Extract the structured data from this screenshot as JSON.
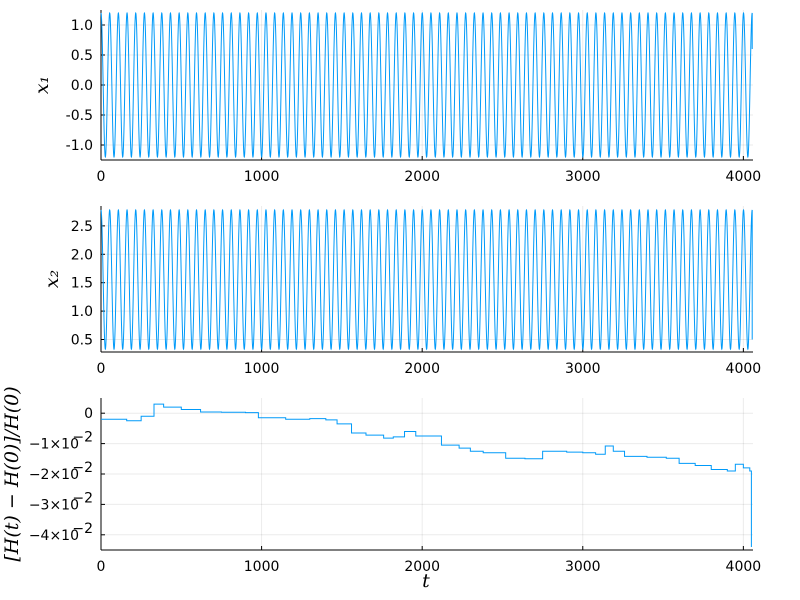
{
  "colors": {
    "series": "#009af9",
    "axis": "#000000",
    "grid": "#e6e6e6"
  },
  "chart_data": [
    {
      "type": "line",
      "ylabel": "x₁",
      "xlim": [
        0,
        4060
      ],
      "ylim": [
        -1.25,
        1.25
      ],
      "xticks": [
        0,
        1000,
        2000,
        3000,
        4000
      ],
      "xtick_labels": [
        "0",
        "1000",
        "2000",
        "3000",
        "4000"
      ],
      "yticks": [
        -1.0,
        -0.5,
        0.0,
        0.5,
        1.0
      ],
      "ytick_labels": [
        "-1.0",
        "-0.5",
        "0.0",
        "0.5",
        "1.0"
      ],
      "grid": true,
      "series": [
        {
          "kind": "oscillation",
          "t_end": 4055,
          "cycles": 75,
          "min": -1.2,
          "max": 1.2,
          "end_value": 0.6
        }
      ]
    },
    {
      "type": "line",
      "ylabel": "x₂",
      "xlim": [
        0,
        4060
      ],
      "ylim": [
        0.28,
        2.85
      ],
      "xticks": [
        0,
        1000,
        2000,
        3000,
        4000
      ],
      "xtick_labels": [
        "0",
        "1000",
        "2000",
        "3000",
        "4000"
      ],
      "yticks": [
        0.5,
        1.0,
        1.5,
        2.0,
        2.5
      ],
      "ytick_labels": [
        "0.5",
        "1.0",
        "1.5",
        "2.0",
        "2.5"
      ],
      "grid": true,
      "series": [
        {
          "kind": "oscillation",
          "t_end": 4055,
          "cycles": 75,
          "min": 0.33,
          "max": 2.78,
          "end_value": 0.5
        }
      ]
    },
    {
      "type": "line",
      "ylabel": "[H(t) − H(0)]/H(0)",
      "xlabel": "t",
      "xlim": [
        0,
        4060
      ],
      "ylim": [
        -0.045,
        0.005
      ],
      "xticks": [
        0,
        1000,
        2000,
        3000,
        4000
      ],
      "xtick_labels": [
        "0",
        "1000",
        "2000",
        "3000",
        "4000"
      ],
      "yticks": [
        0,
        -0.01,
        -0.02,
        -0.03,
        -0.04
      ],
      "ytick_labels": [
        "0",
        "−1×10",
        "−2×10",
        "−3×10",
        "−4×10"
      ],
      "ytick_exponent": "−2",
      "grid": true,
      "series": [
        {
          "kind": "step",
          "points": [
            [
              0,
              -0.002
            ],
            [
              160,
              -0.0025
            ],
            [
              250,
              -0.001
            ],
            [
              330,
              0.003
            ],
            [
              390,
              0.002
            ],
            [
              500,
              0.0012
            ],
            [
              620,
              0.0004
            ],
            [
              750,
              0.0003
            ],
            [
              900,
              0.0002
            ],
            [
              980,
              -0.0015
            ],
            [
              1150,
              -0.002
            ],
            [
              1300,
              -0.0018
            ],
            [
              1400,
              -0.0022
            ],
            [
              1470,
              -0.0035
            ],
            [
              1560,
              -0.0065
            ],
            [
              1650,
              -0.0072
            ],
            [
              1760,
              -0.0082
            ],
            [
              1820,
              -0.0078
            ],
            [
              1890,
              -0.006
            ],
            [
              1960,
              -0.0075
            ],
            [
              2050,
              -0.0075
            ],
            [
              2120,
              -0.0105
            ],
            [
              2230,
              -0.0115
            ],
            [
              2300,
              -0.0125
            ],
            [
              2380,
              -0.013
            ],
            [
              2460,
              -0.013
            ],
            [
              2520,
              -0.0148
            ],
            [
              2640,
              -0.015
            ],
            [
              2750,
              -0.0125
            ],
            [
              2900,
              -0.0128
            ],
            [
              3000,
              -0.013
            ],
            [
              3080,
              -0.0135
            ],
            [
              3140,
              -0.0108
            ],
            [
              3190,
              -0.0125
            ],
            [
              3260,
              -0.0142
            ],
            [
              3400,
              -0.0145
            ],
            [
              3520,
              -0.0148
            ],
            [
              3600,
              -0.0165
            ],
            [
              3700,
              -0.0172
            ],
            [
              3800,
              -0.0185
            ],
            [
              3900,
              -0.019
            ],
            [
              3950,
              -0.0168
            ],
            [
              4000,
              -0.018
            ],
            [
              4040,
              -0.019
            ],
            [
              4050,
              -0.044
            ]
          ]
        }
      ]
    }
  ]
}
